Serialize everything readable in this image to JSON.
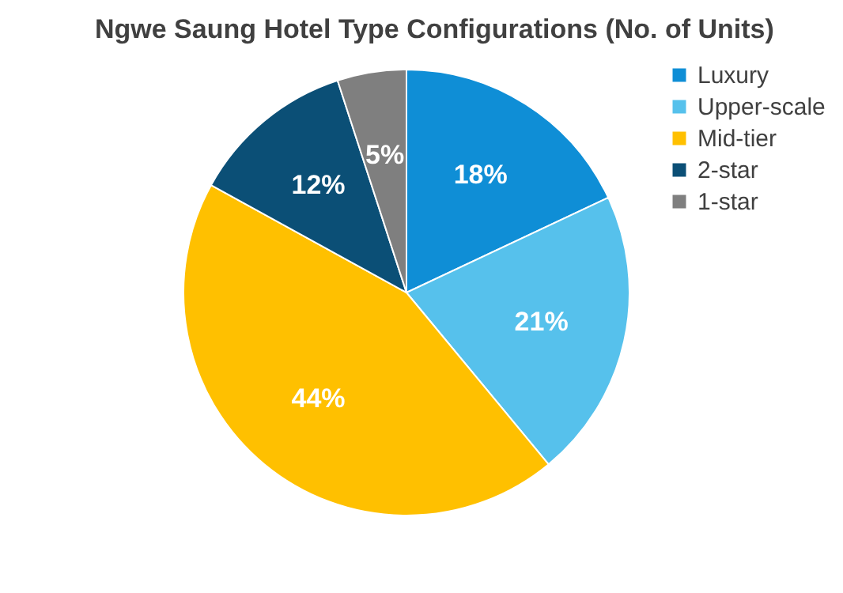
{
  "chart_data": {
    "type": "pie",
    "title": "Ngwe Saung Hotel Type Configurations (No. of Units)",
    "categories": [
      "Luxury",
      "Upper-scale",
      "Mid-tier",
      "2-star",
      "1-star"
    ],
    "values": [
      18,
      21,
      44,
      12,
      5
    ],
    "colors": [
      "#0f8ed6",
      "#56c1ec",
      "#ffc000",
      "#0b4f76",
      "#7f7f7f"
    ],
    "value_labels": [
      "18%",
      "21%",
      "44%",
      "12%",
      "5%"
    ],
    "legend": "right"
  }
}
